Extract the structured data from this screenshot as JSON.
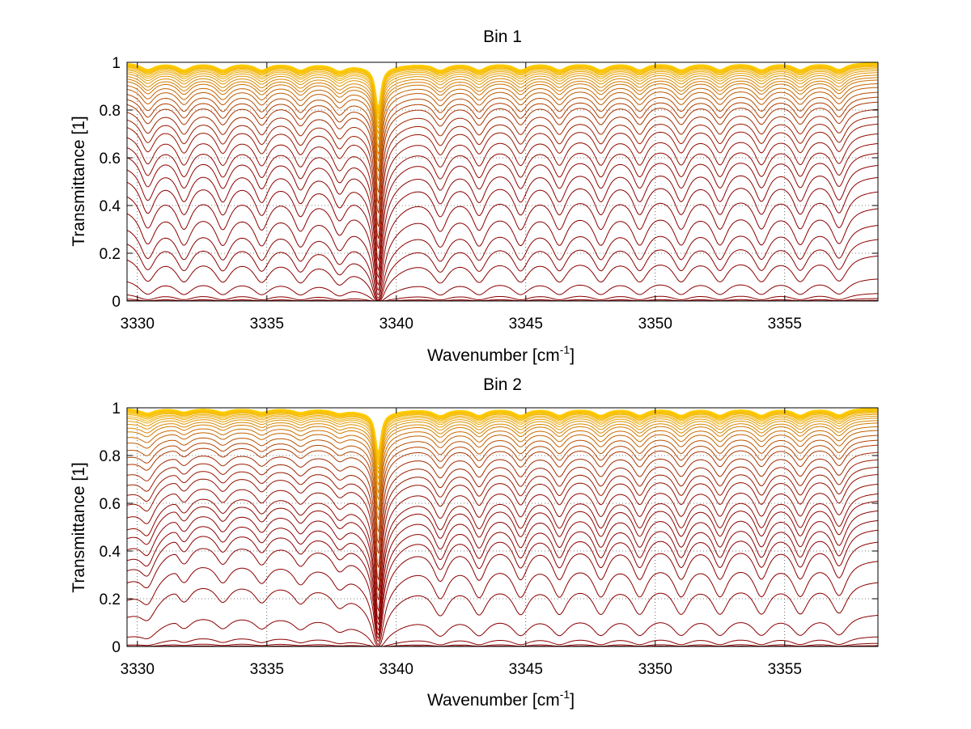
{
  "figure": {
    "background": "#ffffff",
    "axes_color": "#000000",
    "grid_color": "#000000"
  },
  "chart_data": [
    {
      "type": "line",
      "title": "Bin 1",
      "xlabel_main": "Wavenumber [cm",
      "xlabel_sup": "-1",
      "xlabel_close": "]",
      "ylabel": "Transmittance [1]",
      "xlim": [
        3329.6,
        3358.6
      ],
      "ylim": [
        0,
        1
      ],
      "xticks": [
        3330,
        3335,
        3340,
        3345,
        3350,
        3355
      ],
      "xtick_labels": [
        "3330",
        "3335",
        "3340",
        "3345",
        "3350",
        "3355"
      ],
      "yticks": [
        0,
        0.2,
        0.4,
        0.6,
        0.8,
        1
      ],
      "ytick_labels": [
        "0",
        "0.2",
        "0.4",
        "0.6",
        "0.8",
        "1"
      ],
      "grid": "dotted",
      "n_curves": 44,
      "curve_colors": {
        "low_transmittance": "#8b0000",
        "high_transmittance": "#ffcc00"
      },
      "absorption_lines": [
        3330.4,
        3331.8,
        3333.3,
        3334.8,
        3336.3,
        3337.8,
        3339.3,
        3341.7,
        3343.2,
        3344.8,
        3346.3,
        3347.9,
        3349.4,
        3351.0,
        3352.5,
        3354.1,
        3355.6,
        3357.1
      ],
      "strong_line": 3339.3,
      "baseline_levels": [
        0.003,
        0.012,
        0.035,
        0.1,
        0.2,
        0.27,
        0.33,
        0.4,
        0.47,
        0.53,
        0.58,
        0.63,
        0.67,
        0.71,
        0.75,
        0.78,
        0.81,
        0.84,
        0.86,
        0.88,
        0.9,
        0.915,
        0.93,
        0.94,
        0.95,
        0.96,
        0.968,
        0.975,
        0.98,
        0.985,
        0.988,
        0.991,
        0.993,
        0.995,
        0.996,
        0.997,
        0.998,
        0.9985,
        0.999,
        0.9993,
        0.9995,
        0.9997,
        0.9998,
        0.9999
      ],
      "shape": "bin1"
    },
    {
      "type": "line",
      "title": "Bin 2",
      "xlabel_main": "Wavenumber [cm",
      "xlabel_sup": "-1",
      "xlabel_close": "]",
      "ylabel": "Transmittance [1]",
      "xlim": [
        3329.6,
        3358.6
      ],
      "ylim": [
        0,
        1
      ],
      "xticks": [
        3330,
        3335,
        3340,
        3345,
        3350,
        3355
      ],
      "xtick_labels": [
        "3330",
        "3335",
        "3340",
        "3345",
        "3350",
        "3355"
      ],
      "yticks": [
        0,
        0.2,
        0.4,
        0.6,
        0.8,
        1
      ],
      "ytick_labels": [
        "0",
        "0.2",
        "0.4",
        "0.6",
        "0.8",
        "1"
      ],
      "grid": "dotted",
      "n_curves": 44,
      "curve_colors": {
        "low_transmittance": "#8b0000",
        "high_transmittance": "#ffcc00"
      },
      "absorption_lines": [
        3330.4,
        3331.8,
        3333.3,
        3334.8,
        3336.3,
        3337.8,
        3339.3,
        3341.7,
        3343.2,
        3344.8,
        3346.3,
        3347.9,
        3349.4,
        3351.0,
        3352.5,
        3354.1,
        3355.6,
        3357.1
      ],
      "strong_line": 3339.3,
      "baseline_levels": [
        0.004,
        0.015,
        0.045,
        0.14,
        0.28,
        0.37,
        0.45,
        0.5,
        0.54,
        0.58,
        0.62,
        0.65,
        0.69,
        0.73,
        0.76,
        0.79,
        0.82,
        0.85,
        0.87,
        0.89,
        0.91,
        0.925,
        0.94,
        0.95,
        0.96,
        0.968,
        0.975,
        0.98,
        0.985,
        0.988,
        0.991,
        0.993,
        0.995,
        0.996,
        0.997,
        0.998,
        0.9985,
        0.999,
        0.9993,
        0.9995,
        0.9997,
        0.9998,
        0.9999,
        0.99995
      ],
      "shape": "bin2"
    }
  ]
}
